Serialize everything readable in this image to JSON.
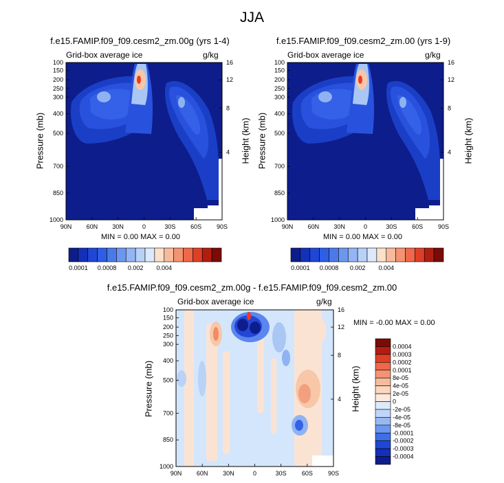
{
  "page_title": "JJA",
  "colors": {
    "lb_deep": "#0e1d8c",
    "lb_mid": "#3561e8",
    "lb_light": "#a9c6f4",
    "lb_peach": "#f7c7a8",
    "lb_hot": "#f03a20",
    "lb_pale_blue": "#d4e6fb",
    "lb_pale_peach": "#fbe3d3"
  },
  "panels": [
    {
      "title": "f.e15.FAMIP.f09_f09.cesm2_zm.00g (yrs 1-4)",
      "subtitle_left": "Grid-box average ice",
      "subtitle_right": "g/kg",
      "min_max": "MIN =   0.00  MAX =   0.00",
      "ylabel": "Pressure (mb)",
      "ylabel_right": "Height (km)"
    },
    {
      "title": "f.e15.FAMIP.f09_f09.cesm2_zm.00 (yrs 1-9)",
      "subtitle_left": "Grid-box average ice",
      "subtitle_right": "g/kg",
      "min_max": "MIN =   0.00  MAX =   0.00",
      "ylabel": "Pressure (mb)",
      "ylabel_right": "Height (km)"
    },
    {
      "title": "f.e15.FAMIP.f09_f09.cesm2_zm.00g - f.e15.FAMIP.f09_f09.cesm2_zm.00",
      "subtitle_left": "Grid-box average ice",
      "subtitle_right": "g/kg",
      "min_max": "MIN =  -0.00  MAX =   0.00",
      "ylabel": "Pressure (mb)",
      "ylabel_right": "Height (km)"
    }
  ],
  "chart_data": [
    {
      "type": "heatmap",
      "title": "f.e15.FAMIP.f09_f09.cesm2_zm.00g (yrs 1-4)",
      "xlabel": "",
      "ylabel": "Pressure (mb)",
      "ylabel_right": "Height (km)",
      "x_ticks": [
        "90N",
        "60N",
        "30N",
        "0",
        "30S",
        "60S",
        "90S"
      ],
      "y_ticks": [
        "100",
        "150",
        "200",
        "250",
        "300",
        "400",
        "500",
        "700",
        "850",
        "1000"
      ],
      "y_ticks_right": [
        "16",
        "12",
        "8",
        "4"
      ],
      "colorbar_labels": [
        "0.0001",
        "0.0008",
        "0.002",
        "0.004"
      ],
      "features": [
        {
          "lat": 10,
          "p": 200,
          "level": "max",
          "note": "peak near 10N, 200 mb"
        },
        {
          "lat": 45,
          "p": 280,
          "level": "mid"
        },
        {
          "lat": -45,
          "p": 330,
          "level": "mid"
        }
      ]
    },
    {
      "type": "heatmap",
      "title": "f.e15.FAMIP.f09_f09.cesm2_zm.00 (yrs 1-9)",
      "xlabel": "",
      "ylabel": "Pressure (mb)",
      "ylabel_right": "Height (km)",
      "x_ticks": [
        "90N",
        "60N",
        "30N",
        "0",
        "30S",
        "60S",
        "90S"
      ],
      "y_ticks": [
        "100",
        "150",
        "200",
        "250",
        "300",
        "400",
        "500",
        "700",
        "850",
        "1000"
      ],
      "y_ticks_right": [
        "16",
        "12",
        "8",
        "4"
      ],
      "colorbar_labels": [
        "0.0001",
        "0.0008",
        "0.002",
        "0.004"
      ],
      "features": [
        {
          "lat": 10,
          "p": 200,
          "level": "max"
        },
        {
          "lat": 45,
          "p": 280,
          "level": "mid"
        },
        {
          "lat": -45,
          "p": 330,
          "level": "mid"
        }
      ]
    },
    {
      "type": "heatmap",
      "title": "f.e15.FAMIP.f09_f09.cesm2_zm.00g - f.e15.FAMIP.f09_f09.cesm2_zm.00",
      "xlabel": "",
      "ylabel": "Pressure (mb)",
      "ylabel_right": "Height (km)",
      "x_ticks": [
        "90N",
        "60N",
        "30N",
        "0",
        "30S",
        "60S",
        "90S"
      ],
      "y_ticks": [
        "100",
        "150",
        "200",
        "250",
        "300",
        "400",
        "500",
        "700",
        "850",
        "1000"
      ],
      "y_ticks_right": [
        "16",
        "12",
        "8",
        "4"
      ],
      "colorbar_labels": [
        "0.0004",
        "0.0003",
        "0.0002",
        "0.0001",
        "8e-05",
        "4e-05",
        "2e-05",
        "0",
        "-2e-05",
        "-4e-05",
        "-8e-05",
        "-0.0001",
        "-0.0002",
        "-0.0003",
        "-0.0004"
      ]
    }
  ]
}
